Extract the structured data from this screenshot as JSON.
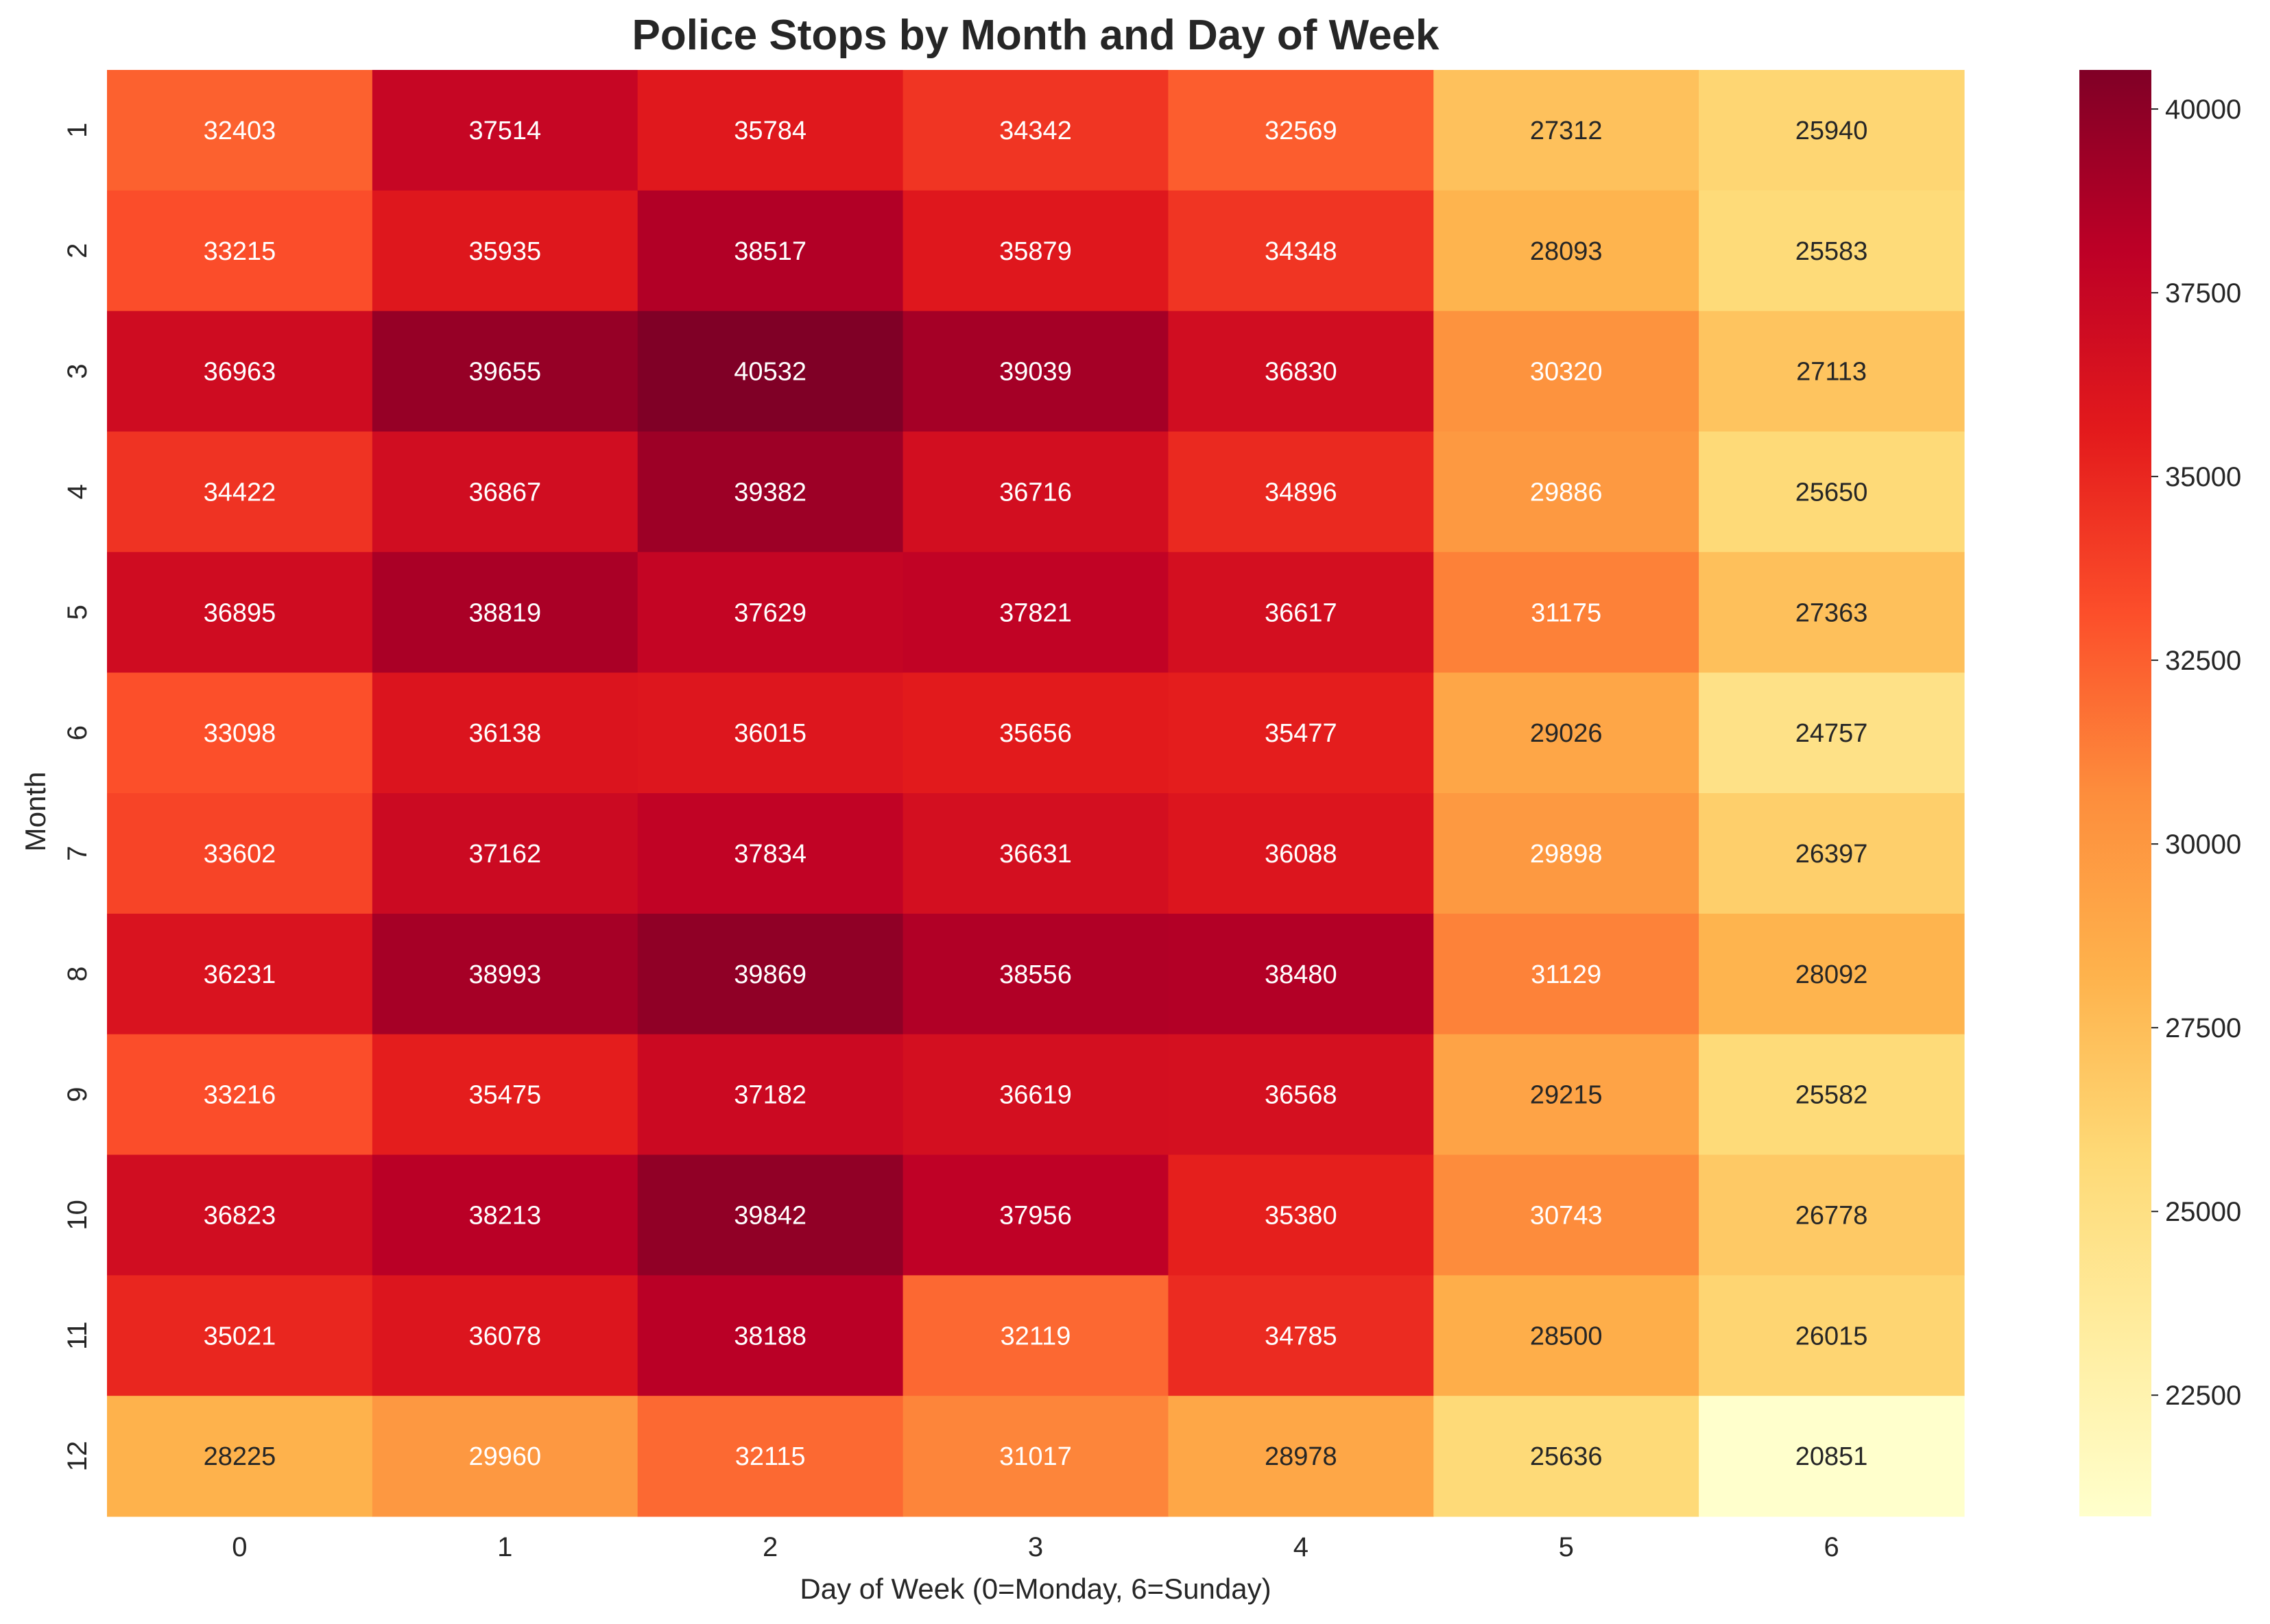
{
  "chart_data": {
    "type": "heatmap",
    "title": "Police Stops by Month and Day of Week",
    "xlabel": "Day of Week (0=Monday, 6=Sunday)",
    "ylabel": "Month",
    "x_categories": [
      "0",
      "1",
      "2",
      "3",
      "4",
      "5",
      "6"
    ],
    "y_categories": [
      "1",
      "2",
      "3",
      "4",
      "5",
      "6",
      "7",
      "8",
      "9",
      "10",
      "11",
      "12"
    ],
    "values": [
      [
        32403,
        37514,
        35784,
        34342,
        32569,
        27312,
        25940
      ],
      [
        33215,
        35935,
        38517,
        35879,
        34348,
        28093,
        25583
      ],
      [
        36963,
        39655,
        40532,
        39039,
        36830,
        30320,
        27113
      ],
      [
        34422,
        36867,
        39382,
        36716,
        34896,
        29886,
        25650
      ],
      [
        36895,
        38819,
        37629,
        37821,
        36617,
        31175,
        27363
      ],
      [
        33098,
        36138,
        36015,
        35656,
        35477,
        29026,
        24757
      ],
      [
        33602,
        37162,
        37834,
        36631,
        36088,
        29898,
        26397
      ],
      [
        36231,
        38993,
        39869,
        38556,
        38480,
        31129,
        28092
      ],
      [
        33216,
        35475,
        37182,
        36619,
        36568,
        29215,
        25582
      ],
      [
        36823,
        38213,
        39842,
        37956,
        35380,
        30743,
        26778
      ],
      [
        35021,
        36078,
        38188,
        32119,
        34785,
        28500,
        26015
      ],
      [
        28225,
        29960,
        32115,
        31017,
        28978,
        25636,
        20851
      ]
    ],
    "colormap": "YlOrRd",
    "color_stops": [
      "#ffffcc",
      "#ffeda0",
      "#fed976",
      "#feb24c",
      "#fd8d3c",
      "#fc4e2a",
      "#e31a1c",
      "#bd0026",
      "#800026"
    ],
    "vmin": 20851,
    "vmax": 40532,
    "colorbar_ticks": [
      22500,
      25000,
      27500,
      30000,
      32500,
      35000,
      37500,
      40000
    ],
    "annotations": true,
    "grid": false
  }
}
